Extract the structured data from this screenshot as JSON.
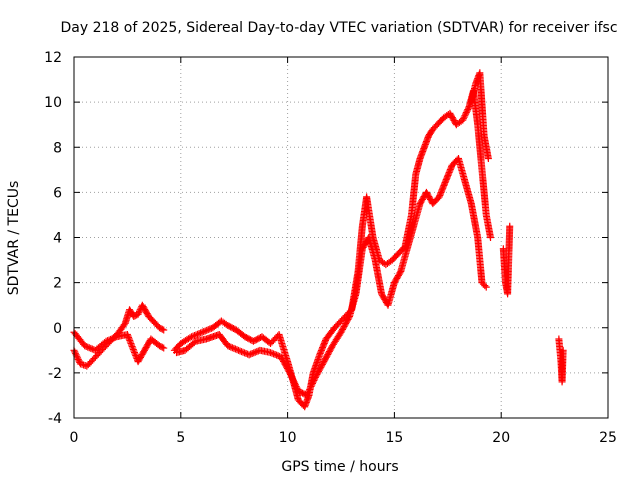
{
  "chart_data": {
    "type": "scatter",
    "title": "Day 218 of 2025, Sidereal Day-to-day VTEC variation (SDTVAR) for receiver ifsc",
    "xlabel": "GPS time / hours",
    "ylabel": "SDTVAR / TECUs",
    "xlim": [
      0,
      25
    ],
    "ylim": [
      -4,
      12
    ],
    "x_ticks": [
      0,
      5,
      10,
      15,
      20,
      25
    ],
    "y_ticks": [
      -4,
      -2,
      0,
      2,
      4,
      6,
      8,
      10,
      12
    ],
    "grid": true,
    "marker": "+",
    "series": [
      {
        "name": "SDTVAR",
        "color": "#ff0000",
        "tracks": [
          {
            "x": [
              0,
              0.3,
              0.6,
              1.0,
              1.4,
              1.8,
              2.1,
              2.4,
              2.6,
              2.8,
              3.0,
              3.2,
              3.5,
              3.8,
              4.0,
              4.2
            ],
            "y": [
              -1.0,
              -1.6,
              -1.7,
              -1.3,
              -0.9,
              -0.5,
              -0.2,
              0.2,
              0.8,
              0.5,
              0.6,
              1.0,
              0.5,
              0.2,
              0.0,
              -0.1
            ]
          },
          {
            "x": [
              0,
              0.5,
              1.0,
              1.5,
              2.0,
              2.5,
              3.0,
              3.3,
              3.6,
              4.0,
              4.2
            ],
            "y": [
              -0.2,
              -0.8,
              -1.0,
              -0.6,
              -0.4,
              -0.3,
              -1.5,
              -1.0,
              -0.5,
              -0.8,
              -0.9
            ]
          },
          {
            "x": [
              4.7,
              5.0,
              5.5,
              6.0,
              6.5,
              6.9,
              7.2,
              7.6,
              8.0,
              8.4,
              8.8,
              9.2,
              9.6,
              10.0,
              10.3,
              10.5,
              10.8,
              11.0,
              11.2,
              11.5,
              11.8,
              12.2,
              12.6,
              13.0,
              13.3,
              13.5,
              13.7,
              14.0,
              14.3,
              14.6,
              14.9,
              15.2,
              15.5,
              15.8,
              16.0,
              16.2,
              16.4,
              16.6,
              16.8,
              17.0,
              17.3,
              17.6,
              17.9,
              18.2,
              18.5,
              18.7,
              18.9,
              19.1,
              19.3,
              19.5
            ],
            "y": [
              -1.0,
              -0.7,
              -0.4,
              -0.2,
              0.0,
              0.3,
              0.1,
              -0.1,
              -0.4,
              -0.6,
              -0.4,
              -0.7,
              -0.3,
              -1.5,
              -2.5,
              -3.2,
              -3.5,
              -3.0,
              -2.0,
              -1.2,
              -0.5,
              0.0,
              0.4,
              0.8,
              2.5,
              4.5,
              5.8,
              4.0,
              3.0,
              2.8,
              3.0,
              3.3,
              3.6,
              5.0,
              6.8,
              7.5,
              8.0,
              8.5,
              8.8,
              9.0,
              9.3,
              9.5,
              9.0,
              9.2,
              9.8,
              10.5,
              9.0,
              7.0,
              5.0,
              4.0
            ]
          },
          {
            "x": [
              4.8,
              5.2,
              5.7,
              6.2,
              6.8,
              7.2,
              7.7,
              8.2,
              8.7,
              9.2,
              9.7,
              10.1,
              10.5,
              10.9,
              11.3,
              11.7,
              12.1,
              12.5,
              12.9,
              13.2,
              13.5,
              13.8,
              14.1,
              14.4,
              14.7,
              15.0,
              15.3,
              15.6,
              15.9,
              16.2,
              16.5,
              16.8,
              17.1,
              17.4,
              17.7,
              18.0,
              18.3,
              18.6,
              18.9,
              19.1,
              19.3
            ],
            "y": [
              -1.1,
              -1.0,
              -0.6,
              -0.5,
              -0.3,
              -0.8,
              -1.0,
              -1.2,
              -1.0,
              -1.1,
              -1.3,
              -2.0,
              -2.8,
              -3.0,
              -2.2,
              -1.5,
              -0.8,
              -0.2,
              0.5,
              1.5,
              3.5,
              4.0,
              3.0,
              1.5,
              1.0,
              2.0,
              2.5,
              3.5,
              4.5,
              5.5,
              6.0,
              5.5,
              5.8,
              6.5,
              7.2,
              7.5,
              6.5,
              5.5,
              4.0,
              2.0,
              1.8
            ]
          },
          {
            "x": [
              18.6,
              18.8,
              19.0,
              19.2,
              19.4
            ],
            "y": [
              10.0,
              10.8,
              11.3,
              8.5,
              7.5
            ]
          },
          {
            "x": [
              20.1,
              20.2,
              20.3,
              20.4
            ],
            "y": [
              3.5,
              2.0,
              1.5,
              4.5
            ]
          },
          {
            "x": [
              22.7,
              22.8,
              22.85,
              22.9
            ],
            "y": [
              -0.5,
              -1.5,
              -2.4,
              -1.0
            ]
          }
        ]
      }
    ]
  }
}
